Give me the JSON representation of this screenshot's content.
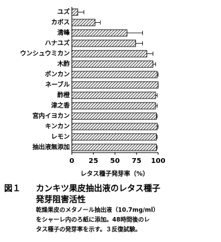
{
  "chart_data": {
    "type": "hbar",
    "figure_label": "図１",
    "title": [
      "カンキツ果皮抽出液のレタス種子",
      "発芽阻害活性"
    ],
    "caption": [
      "乾燥果皮のメタノール抽出液（10.7mg/ml）",
      "をシャーレ内のろ紙に添加。48時間後のレ",
      "タス種子の発芽率を示す。３反復試験。"
    ],
    "x_label": "レタス種子発芽率（%）",
    "categories": [
      "ユズ",
      "カボス",
      "清峰",
      "ハナユズ",
      "ウンシュウミカン",
      "木酢",
      "ポンカン",
      "ネーブル",
      "酢橙",
      "津之香",
      "宮内イヨカン",
      "キンカン",
      "レモン",
      "抽出液無添加"
    ],
    "values": [
      7,
      27,
      64,
      74,
      87,
      94,
      99,
      100,
      97,
      97,
      98,
      99,
      98,
      98
    ],
    "errors": [
      7,
      6,
      18,
      8,
      7,
      3,
      1,
      0,
      2,
      2,
      1,
      1,
      1,
      1
    ],
    "color": "#000000",
    "xlim": [
      0,
      100
    ],
    "xticks": [
      0,
      25,
      50,
      75,
      100
    ]
  }
}
